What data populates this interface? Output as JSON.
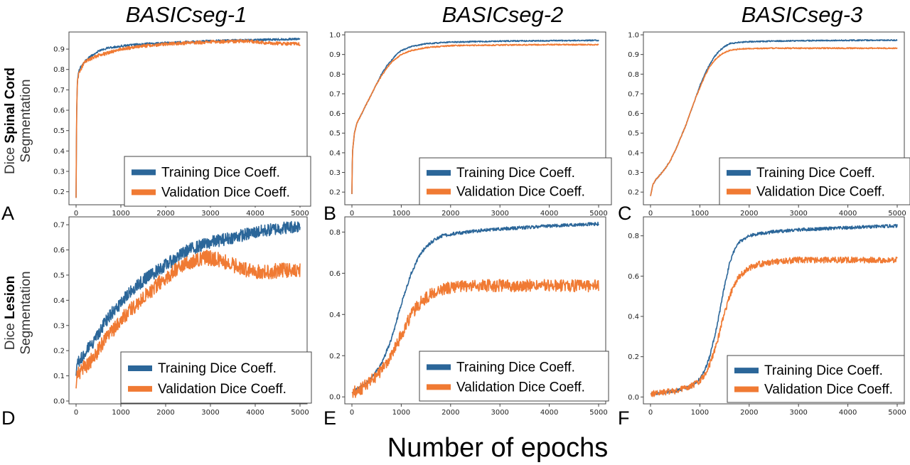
{
  "figure": {
    "column_titles": [
      "BASICseg-1",
      "BASICseg-2",
      "BASICseg-3"
    ],
    "row_labels": [
      {
        "prefix": "Dice ",
        "bold": "Spinal Cord",
        "second_line": "Segmentation"
      },
      {
        "prefix": "Dice ",
        "bold": "Lesion",
        "second_line": "Segmentation"
      }
    ],
    "panel_letters": [
      "A",
      "B",
      "C",
      "D",
      "E",
      "F"
    ],
    "xlabel": "Number of epochs",
    "legend_entries": [
      "Training Dice Coeff.",
      "Validation Dice Coeff."
    ],
    "colors": {
      "training": "#2b6699",
      "validation": "#f07a33",
      "axes": "#444444"
    }
  },
  "chart_data": [
    {
      "panel": "A",
      "type": "line",
      "xlim": [
        0,
        5000
      ],
      "ylim": [
        0.15,
        0.97
      ],
      "xticks": [
        0,
        1000,
        2000,
        3000,
        4000,
        5000
      ],
      "yticks": [
        0.2,
        0.3,
        0.4,
        0.5,
        0.6,
        0.7,
        0.8,
        0.9
      ],
      "legend": "lower-right",
      "series": [
        {
          "name": "Training Dice Coeff.",
          "x": [
            0,
            10,
            30,
            60,
            100,
            200,
            300,
            500,
            700,
            1000,
            1500,
            2000,
            3000,
            4000,
            5000
          ],
          "y": [
            0.17,
            0.55,
            0.75,
            0.79,
            0.81,
            0.84,
            0.86,
            0.89,
            0.905,
            0.915,
            0.925,
            0.93,
            0.94,
            0.945,
            0.95
          ],
          "noise": 0.005
        },
        {
          "name": "Validation Dice Coeff.",
          "x": [
            0,
            10,
            30,
            60,
            100,
            200,
            300,
            500,
            700,
            1000,
            1500,
            2000,
            3000,
            3800,
            4200,
            5000
          ],
          "y": [
            0.17,
            0.55,
            0.74,
            0.78,
            0.8,
            0.84,
            0.85,
            0.87,
            0.88,
            0.9,
            0.915,
            0.925,
            0.935,
            0.94,
            0.93,
            0.925
          ],
          "noise": 0.008
        }
      ]
    },
    {
      "panel": "B",
      "type": "line",
      "xlim": [
        0,
        5000
      ],
      "ylim": [
        0.15,
        1.0
      ],
      "xticks": [
        0,
        1000,
        2000,
        3000,
        4000,
        5000
      ],
      "yticks": [
        0.2,
        0.3,
        0.4,
        0.5,
        0.6,
        0.7,
        0.8,
        0.9,
        1.0
      ],
      "legend": "lower-right",
      "series": [
        {
          "name": "Training Dice Coeff.",
          "x": [
            0,
            10,
            50,
            100,
            200,
            300,
            400,
            500,
            600,
            700,
            800,
            900,
            1000,
            1200,
            1500,
            2000,
            3000,
            4000,
            5000
          ],
          "y": [
            0.19,
            0.4,
            0.5,
            0.55,
            0.6,
            0.65,
            0.7,
            0.75,
            0.8,
            0.84,
            0.87,
            0.9,
            0.92,
            0.94,
            0.955,
            0.963,
            0.968,
            0.97,
            0.972
          ],
          "noise": 0.003
        },
        {
          "name": "Validation Dice Coeff.",
          "x": [
            0,
            10,
            50,
            100,
            200,
            300,
            400,
            500,
            600,
            700,
            800,
            900,
            1000,
            1200,
            1500,
            2000,
            3000,
            4000,
            5000
          ],
          "y": [
            0.19,
            0.4,
            0.5,
            0.55,
            0.6,
            0.65,
            0.7,
            0.75,
            0.79,
            0.83,
            0.86,
            0.88,
            0.9,
            0.92,
            0.935,
            0.945,
            0.948,
            0.95,
            0.95
          ],
          "noise": 0.003
        }
      ]
    },
    {
      "panel": "C",
      "type": "line",
      "xlim": [
        0,
        5000
      ],
      "ylim": [
        0.15,
        1.0
      ],
      "xticks": [
        0,
        1000,
        2000,
        3000,
        4000,
        5000
      ],
      "yticks": [
        0.2,
        0.3,
        0.4,
        0.5,
        0.6,
        0.7,
        0.8,
        0.9,
        1.0
      ],
      "legend": "lower-right",
      "series": [
        {
          "name": "Training Dice Coeff.",
          "x": [
            0,
            50,
            100,
            200,
            300,
            400,
            500,
            600,
            700,
            800,
            900,
            1000,
            1100,
            1200,
            1300,
            1400,
            1500,
            1600,
            1800,
            2000,
            2500,
            3000,
            4000,
            5000
          ],
          "y": [
            0.18,
            0.24,
            0.26,
            0.29,
            0.32,
            0.36,
            0.41,
            0.47,
            0.53,
            0.6,
            0.67,
            0.74,
            0.8,
            0.85,
            0.89,
            0.92,
            0.94,
            0.955,
            0.962,
            0.965,
            0.968,
            0.97,
            0.972,
            0.973
          ],
          "noise": 0.003
        },
        {
          "name": "Validation Dice Coeff.",
          "x": [
            0,
            50,
            100,
            200,
            300,
            400,
            500,
            600,
            700,
            800,
            900,
            1000,
            1100,
            1200,
            1300,
            1400,
            1500,
            1600,
            1800,
            2000,
            2500,
            3000,
            4000,
            5000
          ],
          "y": [
            0.18,
            0.24,
            0.26,
            0.29,
            0.32,
            0.36,
            0.41,
            0.47,
            0.53,
            0.6,
            0.67,
            0.73,
            0.79,
            0.84,
            0.87,
            0.895,
            0.91,
            0.92,
            0.928,
            0.93,
            0.932,
            0.932,
            0.932,
            0.932
          ],
          "noise": 0.003
        }
      ]
    },
    {
      "panel": "D",
      "type": "line",
      "xlim": [
        0,
        5000
      ],
      "ylim": [
        0.0,
        0.72
      ],
      "xticks": [
        0,
        1000,
        2000,
        3000,
        4000,
        5000
      ],
      "yticks": [
        0.0,
        0.1,
        0.2,
        0.3,
        0.4,
        0.5,
        0.6,
        0.7
      ],
      "legend": "lower-right",
      "series": [
        {
          "name": "Training Dice Coeff.",
          "x": [
            0,
            20,
            100,
            200,
            400,
            600,
            800,
            1000,
            1200,
            1500,
            2000,
            2500,
            3000,
            3500,
            4000,
            4500,
            5000
          ],
          "y": [
            0.1,
            0.15,
            0.17,
            0.19,
            0.24,
            0.3,
            0.35,
            0.39,
            0.43,
            0.48,
            0.54,
            0.6,
            0.63,
            0.65,
            0.67,
            0.685,
            0.695
          ],
          "noise": 0.025
        },
        {
          "name": "Validation Dice Coeff.",
          "x": [
            0,
            20,
            100,
            300,
            600,
            900,
            1200,
            1500,
            2000,
            2500,
            2900,
            3200,
            3500,
            3800,
            4200,
            4600,
            5000
          ],
          "y": [
            0.05,
            0.1,
            0.12,
            0.15,
            0.23,
            0.3,
            0.36,
            0.41,
            0.49,
            0.55,
            0.57,
            0.56,
            0.54,
            0.52,
            0.51,
            0.52,
            0.52
          ],
          "noise": 0.03
        }
      ]
    },
    {
      "panel": "E",
      "type": "line",
      "xlim": [
        0,
        5000
      ],
      "ylim": [
        -0.02,
        0.86
      ],
      "xticks": [
        0,
        1000,
        2000,
        3000,
        4000,
        5000
      ],
      "yticks": [
        0.0,
        0.2,
        0.4,
        0.6,
        0.8
      ],
      "legend": "lower-right",
      "series": [
        {
          "name": "Training Dice Coeff.",
          "x": [
            0,
            200,
            400,
            600,
            800,
            1000,
            1200,
            1400,
            1600,
            1800,
            2000,
            2500,
            3000,
            4000,
            5000
          ],
          "y": [
            0.02,
            0.05,
            0.09,
            0.16,
            0.28,
            0.45,
            0.6,
            0.7,
            0.75,
            0.78,
            0.79,
            0.805,
            0.815,
            0.83,
            0.84
          ],
          "noise": 0.008
        },
        {
          "name": "Validation Dice Coeff.",
          "x": [
            0,
            200,
            400,
            600,
            800,
            1000,
            1200,
            1400,
            1600,
            1800,
            2000,
            2500,
            3000,
            4000,
            5000
          ],
          "y": [
            0.02,
            0.04,
            0.08,
            0.13,
            0.2,
            0.3,
            0.4,
            0.46,
            0.5,
            0.52,
            0.53,
            0.54,
            0.54,
            0.54,
            0.54
          ],
          "noise": 0.03
        }
      ]
    },
    {
      "panel": "F",
      "type": "line",
      "xlim": [
        0,
        5000
      ],
      "ylim": [
        -0.02,
        0.88
      ],
      "xticks": [
        0,
        1000,
        2000,
        3000,
        4000,
        5000
      ],
      "yticks": [
        0.0,
        0.2,
        0.4,
        0.6,
        0.8
      ],
      "legend": "lower-right",
      "series": [
        {
          "name": "Training Dice Coeff.",
          "x": [
            0,
            500,
            800,
            1000,
            1100,
            1200,
            1300,
            1400,
            1500,
            1600,
            1700,
            1800,
            2000,
            2200,
            2500,
            3000,
            4000,
            5000
          ],
          "y": [
            0.015,
            0.03,
            0.05,
            0.09,
            0.13,
            0.2,
            0.3,
            0.42,
            0.55,
            0.66,
            0.73,
            0.77,
            0.8,
            0.81,
            0.82,
            0.83,
            0.84,
            0.85
          ],
          "noise": 0.008
        },
        {
          "name": "Validation Dice Coeff.",
          "x": [
            0,
            500,
            800,
            1000,
            1100,
            1200,
            1300,
            1400,
            1500,
            1600,
            1700,
            1800,
            2000,
            2200,
            2500,
            3000,
            4000,
            5000
          ],
          "y": [
            0.015,
            0.03,
            0.05,
            0.08,
            0.11,
            0.16,
            0.23,
            0.32,
            0.42,
            0.5,
            0.56,
            0.6,
            0.64,
            0.66,
            0.67,
            0.68,
            0.68,
            0.68
          ],
          "noise": 0.015
        }
      ]
    }
  ]
}
